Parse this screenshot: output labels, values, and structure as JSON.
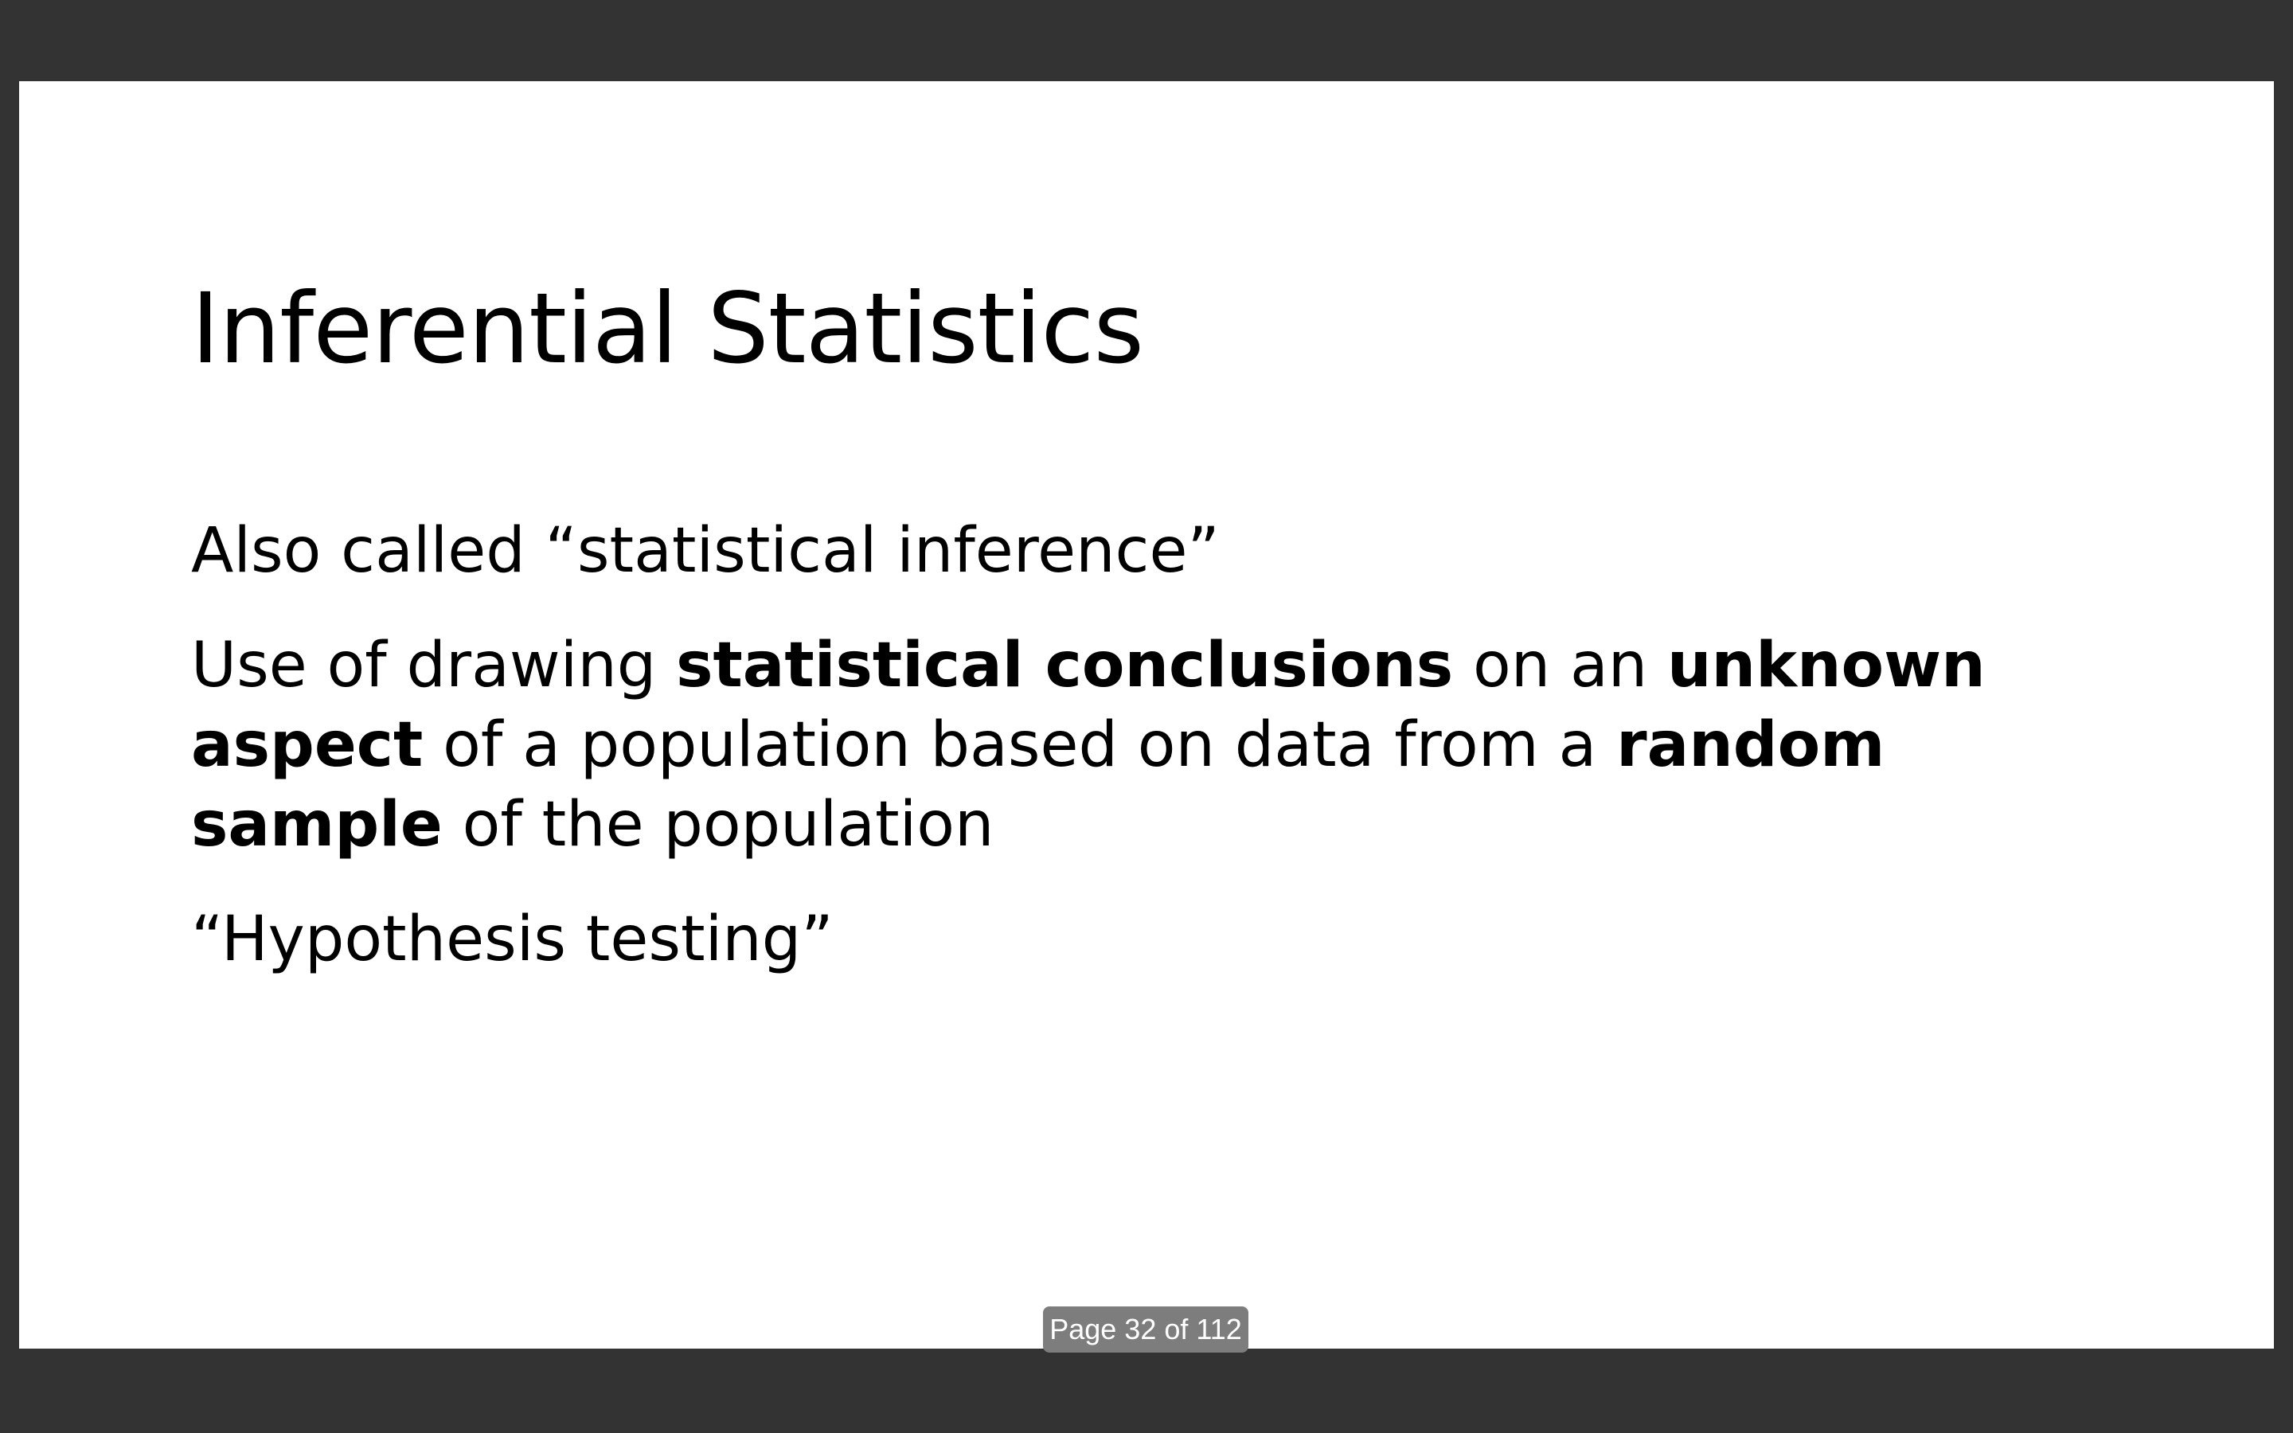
{
  "slide": {
    "title": "Inferential Statistics",
    "line1": "Also called “statistical inference”",
    "line2": {
      "part1": "Use of drawing ",
      "bold1": "statistical conclusions",
      "part2": " on an ",
      "bold2": "unknown aspect",
      "part3": " of a population based on data from a ",
      "bold3": "random sample",
      "part4": " of the population"
    },
    "line3": "“Hypothesis testing”"
  },
  "viewer": {
    "page_indicator": "Page 32 of 112",
    "background_color": "#333333",
    "page_color": "#ffffff"
  }
}
